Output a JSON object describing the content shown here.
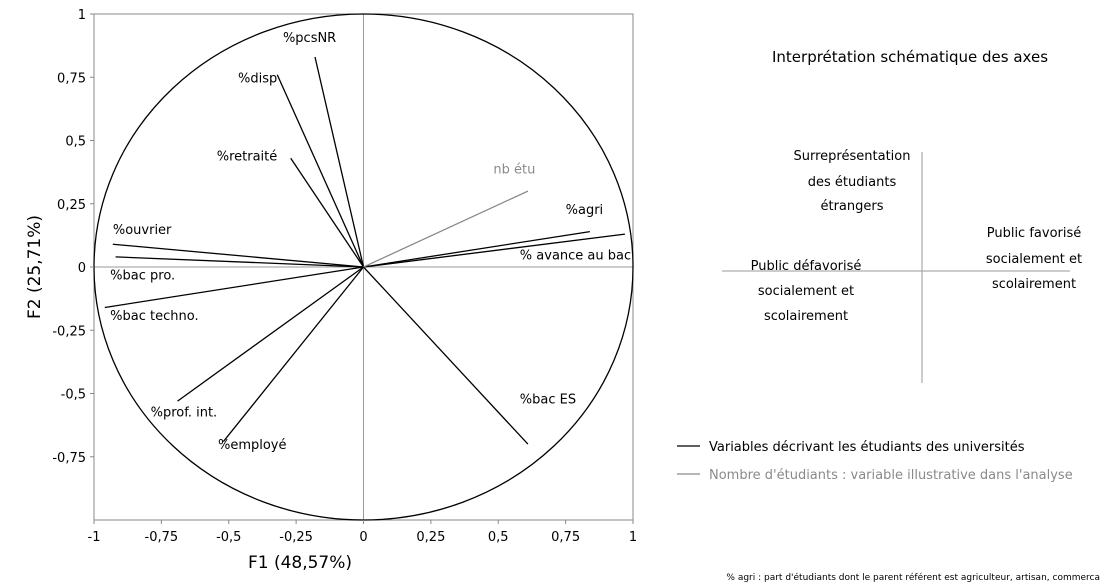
{
  "chart_data": {
    "type": "correlation-circle",
    "xlabel": "F1 (48,57%)",
    "ylabel": "F2 (25,71%)",
    "xlim": [
      -1,
      1
    ],
    "ylim": [
      -1,
      1
    ],
    "x_ticks": [
      {
        "value": -1,
        "label": "-1"
      },
      {
        "value": -0.75,
        "label": "-0,75"
      },
      {
        "value": -0.5,
        "label": "-0,5"
      },
      {
        "value": -0.25,
        "label": "-0,25"
      },
      {
        "value": 0,
        "label": "0"
      },
      {
        "value": 0.25,
        "label": "0,25"
      },
      {
        "value": 0.5,
        "label": "0,5"
      },
      {
        "value": 0.75,
        "label": "0,75"
      },
      {
        "value": 1,
        "label": "1"
      }
    ],
    "y_ticks": [
      {
        "value": 1,
        "label": "1"
      },
      {
        "value": 0.75,
        "label": "0,75"
      },
      {
        "value": 0.5,
        "label": "0,5"
      },
      {
        "value": 0.25,
        "label": "0,25"
      },
      {
        "value": 0,
        "label": "0"
      },
      {
        "value": -0.25,
        "label": "-0,25"
      },
      {
        "value": -0.5,
        "label": "-0,5"
      },
      {
        "value": -0.75,
        "label": "-0,75"
      }
    ],
    "variables": [
      {
        "name": "%pcsNR",
        "x": -0.18,
        "y": 0.83,
        "label_x": -0.2,
        "label_y": 0.89,
        "anchor": "middle",
        "illustrative": false
      },
      {
        "name": "%disp",
        "x": -0.32,
        "y": 0.76,
        "label_x": -0.32,
        "label_y": 0.73,
        "anchor": "end",
        "illustrative": false
      },
      {
        "name": "%retraité",
        "x": -0.27,
        "y": 0.43,
        "label_x": -0.32,
        "label_y": 0.42,
        "anchor": "end",
        "illustrative": false
      },
      {
        "name": "%ouvrier",
        "x": -0.93,
        "y": 0.09,
        "label_x": -0.93,
        "label_y": 0.13,
        "anchor": "start",
        "illustrative": false
      },
      {
        "name": "%bac pro.",
        "x": -0.92,
        "y": 0.04,
        "label_x": -0.94,
        "label_y": -0.05,
        "anchor": "start",
        "illustrative": false
      },
      {
        "name": "%bac techno.",
        "x": -0.96,
        "y": -0.16,
        "label_x": -0.94,
        "label_y": -0.21,
        "anchor": "start",
        "illustrative": false
      },
      {
        "name": "%prof. int.",
        "x": -0.69,
        "y": -0.53,
        "label_x": -0.79,
        "label_y": -0.59,
        "anchor": "start",
        "illustrative": false
      },
      {
        "name": "%employé",
        "x": -0.52,
        "y": -0.69,
        "label_x": -0.54,
        "label_y": -0.72,
        "anchor": "start",
        "illustrative": false
      },
      {
        "name": "%agri",
        "x": 0.84,
        "y": 0.14,
        "label_x": 0.75,
        "label_y": 0.21,
        "anchor": "start",
        "illustrative": false
      },
      {
        "name": "% avance au bac",
        "x": 0.97,
        "y": 0.13,
        "label_x": 0.58,
        "label_y": 0.03,
        "anchor": "start",
        "illustrative": false
      },
      {
        "name": "%bac ES",
        "x": 0.61,
        "y": -0.7,
        "label_x": 0.58,
        "label_y": -0.54,
        "anchor": "start",
        "illustrative": false
      },
      {
        "name": "nb étu",
        "x": 0.61,
        "y": 0.3,
        "label_x": 0.56,
        "label_y": 0.37,
        "anchor": "middle",
        "illustrative": true
      }
    ]
  },
  "schema": {
    "title": "Interprétation schématique des axes",
    "top_lines": [
      "Surreprésentation",
      "des étudiants",
      "étrangers"
    ],
    "left_lines": [
      "Public défavorisé",
      "socialement et",
      "scolairement"
    ],
    "right_lines": [
      "Public favorisé",
      "socialement et",
      "scolairement"
    ]
  },
  "legend": {
    "items": [
      {
        "label": "Variables décrivant les étudiants des universités",
        "color": "#000000"
      },
      {
        "label": "Nombre d'étudiants : variable illustrative dans l'analyse",
        "color": "#8a8a8a"
      }
    ]
  },
  "footnote": "% agri : part d'étudiants dont le parent référent est agriculteur, artisan, commerca",
  "colors": {
    "active": "#000000",
    "illustrative": "#8a8a8a",
    "axes": "#9a9a9a"
  }
}
